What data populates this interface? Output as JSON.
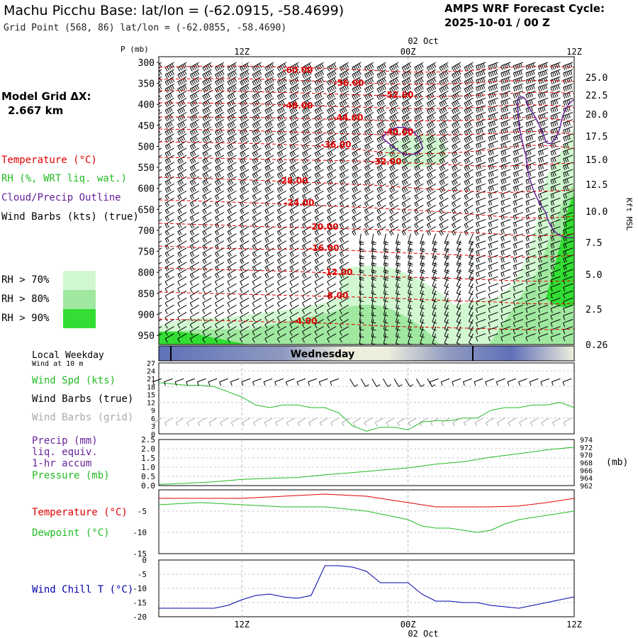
{
  "header": {
    "station_title": "Machu Picchu Base:  lat/lon = (-62.0915, -58.4699)",
    "grid_point": "Grid Point (568, 86) lat/lon = (-62.0855, -58.4690)",
    "forecast_label": "AMPS WRF Forecast Cycle:",
    "forecast_cycle": "2025-10-01 / 00  Z"
  },
  "model_grid": {
    "label": "Model Grid ΔX:",
    "value": "2.667 km"
  },
  "time_axis": {
    "top_date": "02 Oct",
    "bottom_date": "02 Oct",
    "ticks": [
      "12Z",
      "00Z",
      "12Z"
    ]
  },
  "upper_panel": {
    "pressure_label": "P (mb)",
    "height_label": "Kft MSL",
    "pressure_levels": [
      300,
      350,
      400,
      450,
      500,
      550,
      600,
      650,
      700,
      750,
      800,
      850,
      900,
      950
    ],
    "height_ticks": [
      "25.0",
      "22.5",
      "20.0",
      "17.5",
      "15.0",
      "12.5",
      "10.0",
      "7.5",
      "5.0",
      "2.5",
      "0.26"
    ],
    "legend": {
      "temperature": "Temperature (°C)",
      "rh": "RH (%, WRT liq. wat.)",
      "cloud": "Cloud/Precip Outline",
      "wind": "Wind Barbs (kts) (true)"
    },
    "rh_key": [
      "RH > 70%",
      "RH > 80%",
      "RH > 90%"
    ],
    "isotherms": [
      "-60.00",
      "-56.00",
      "-52.00",
      "-48.00",
      "-44.00",
      "-40.00",
      "-36.00",
      "-32.00",
      "-28.00",
      "-24.00",
      "-20.00",
      "-16.00",
      "-12.00",
      "-8.00",
      "-4.00"
    ]
  },
  "colors": {
    "temperature": "#e00000",
    "rh": "#22bb22",
    "cloud": "#662299",
    "wind_grid": "#aaaaaa",
    "wind_chill": "#0000aa",
    "rh70": "#d2f8d2",
    "rh80": "#a0e8a0",
    "rh90": "#33dd33"
  },
  "weekday_bar": {
    "label": "Local Weekday",
    "day": "Wednesday"
  },
  "wind_panel": {
    "subtitle": "Wind at 10 m",
    "labels": [
      "Wind Spd (kts)",
      "Wind Barbs (true)",
      "Wind Barbs (grid)"
    ],
    "yticks": [
      "27",
      "24",
      "21",
      "18",
      "15",
      "12",
      "9",
      "6",
      "3",
      "0"
    ]
  },
  "precip_panel": {
    "labels": [
      "Precip (mm)",
      "liq. equiv.",
      "1-hr accum",
      "Pressure (mb)"
    ],
    "left_ticks": [
      "2.5",
      "2.0",
      "1.5",
      "1.0",
      "0.5",
      "0.0"
    ],
    "right_ticks": [
      "974",
      "972",
      "970",
      "968",
      "966",
      "964",
      "962"
    ],
    "right_unit": "(mb)"
  },
  "temp_panel": {
    "labels": [
      "Temperature (°C)",
      "Dewpoint (°C)"
    ],
    "yticks": [
      "-5",
      "-10",
      "-15"
    ]
  },
  "chill_panel": {
    "label": "Wind Chill T (°C)",
    "yticks": [
      "0",
      "-5",
      "-10",
      "-15",
      "-20"
    ]
  },
  "chart_data": [
    {
      "type": "line",
      "name": "Wind Spd (kts)",
      "x_hours": [
        0,
        2,
        4,
        6,
        8,
        10,
        12,
        14,
        16,
        18,
        19,
        20,
        22,
        24,
        26,
        28,
        30,
        32,
        34,
        36,
        38,
        40,
        42,
        44,
        46,
        48,
        50,
        52,
        54,
        56,
        58,
        60
      ],
      "y": [
        19.5,
        19,
        18.5,
        18.5,
        18,
        16,
        14,
        11,
        10,
        11,
        11,
        11,
        10,
        10,
        8,
        3,
        1,
        2.5,
        2.5,
        1.5,
        4.5,
        5,
        5,
        6,
        6,
        9,
        10,
        10,
        11,
        11,
        12,
        10
      ],
      "ylim": [
        0,
        27
      ]
    },
    {
      "type": "line",
      "name": "Pressure (mb)",
      "x_hours": [
        0,
        4,
        8,
        12,
        16,
        20,
        24,
        28,
        32,
        36,
        40,
        44,
        48,
        52,
        56,
        60
      ],
      "y": [
        962.3,
        962.6,
        963,
        963.6,
        963.9,
        964.1,
        964.8,
        965.4,
        966,
        966.6,
        967.6,
        968.2,
        969.4,
        970.3,
        971.3,
        972
      ],
      "ylim": [
        962,
        974
      ]
    },
    {
      "type": "line",
      "name": "Temperature (°C)",
      "x_hours": [
        0,
        6,
        12,
        18,
        24,
        30,
        36,
        38,
        40,
        42,
        48,
        52,
        56,
        60
      ],
      "y": [
        -2,
        -2,
        -2,
        -1.5,
        -1,
        -1.5,
        -3,
        -3.5,
        -4,
        -4,
        -4,
        -3.8,
        -3,
        -2
      ],
      "ylim": [
        -15,
        0
      ]
    },
    {
      "type": "line",
      "name": "Dewpoint (°C)",
      "x_hours": [
        0,
        6,
        12,
        18,
        24,
        30,
        36,
        38,
        40,
        42,
        44,
        46,
        48,
        50,
        52,
        54,
        56,
        58,
        60
      ],
      "y": [
        -3.5,
        -3,
        -3.5,
        -4,
        -4,
        -5,
        -7,
        -8.5,
        -9,
        -9,
        -9.5,
        -10,
        -9.5,
        -8,
        -7,
        -6.5,
        -6,
        -5.5,
        -5
      ],
      "ylim": [
        -15,
        0
      ]
    },
    {
      "type": "line",
      "name": "Wind Chill T (°C)",
      "x_hours": [
        0,
        4,
        8,
        10,
        12,
        14,
        16,
        18,
        20,
        22,
        24,
        26,
        28,
        30,
        32,
        34,
        36,
        38,
        40,
        42,
        44,
        46,
        48,
        50,
        52,
        54,
        56,
        58,
        60
      ],
      "y": [
        -17,
        -17,
        -17,
        -16,
        -14,
        -12.5,
        -12,
        -13,
        -13.5,
        -12.5,
        -2,
        -2,
        -2.5,
        -4,
        -8,
        -8,
        -8,
        -12,
        -14.5,
        -14.5,
        -15,
        -15,
        -16,
        -16.5,
        -17,
        -16,
        -15,
        -14,
        -13
      ],
      "ylim": [
        -20,
        0
      ]
    }
  ]
}
